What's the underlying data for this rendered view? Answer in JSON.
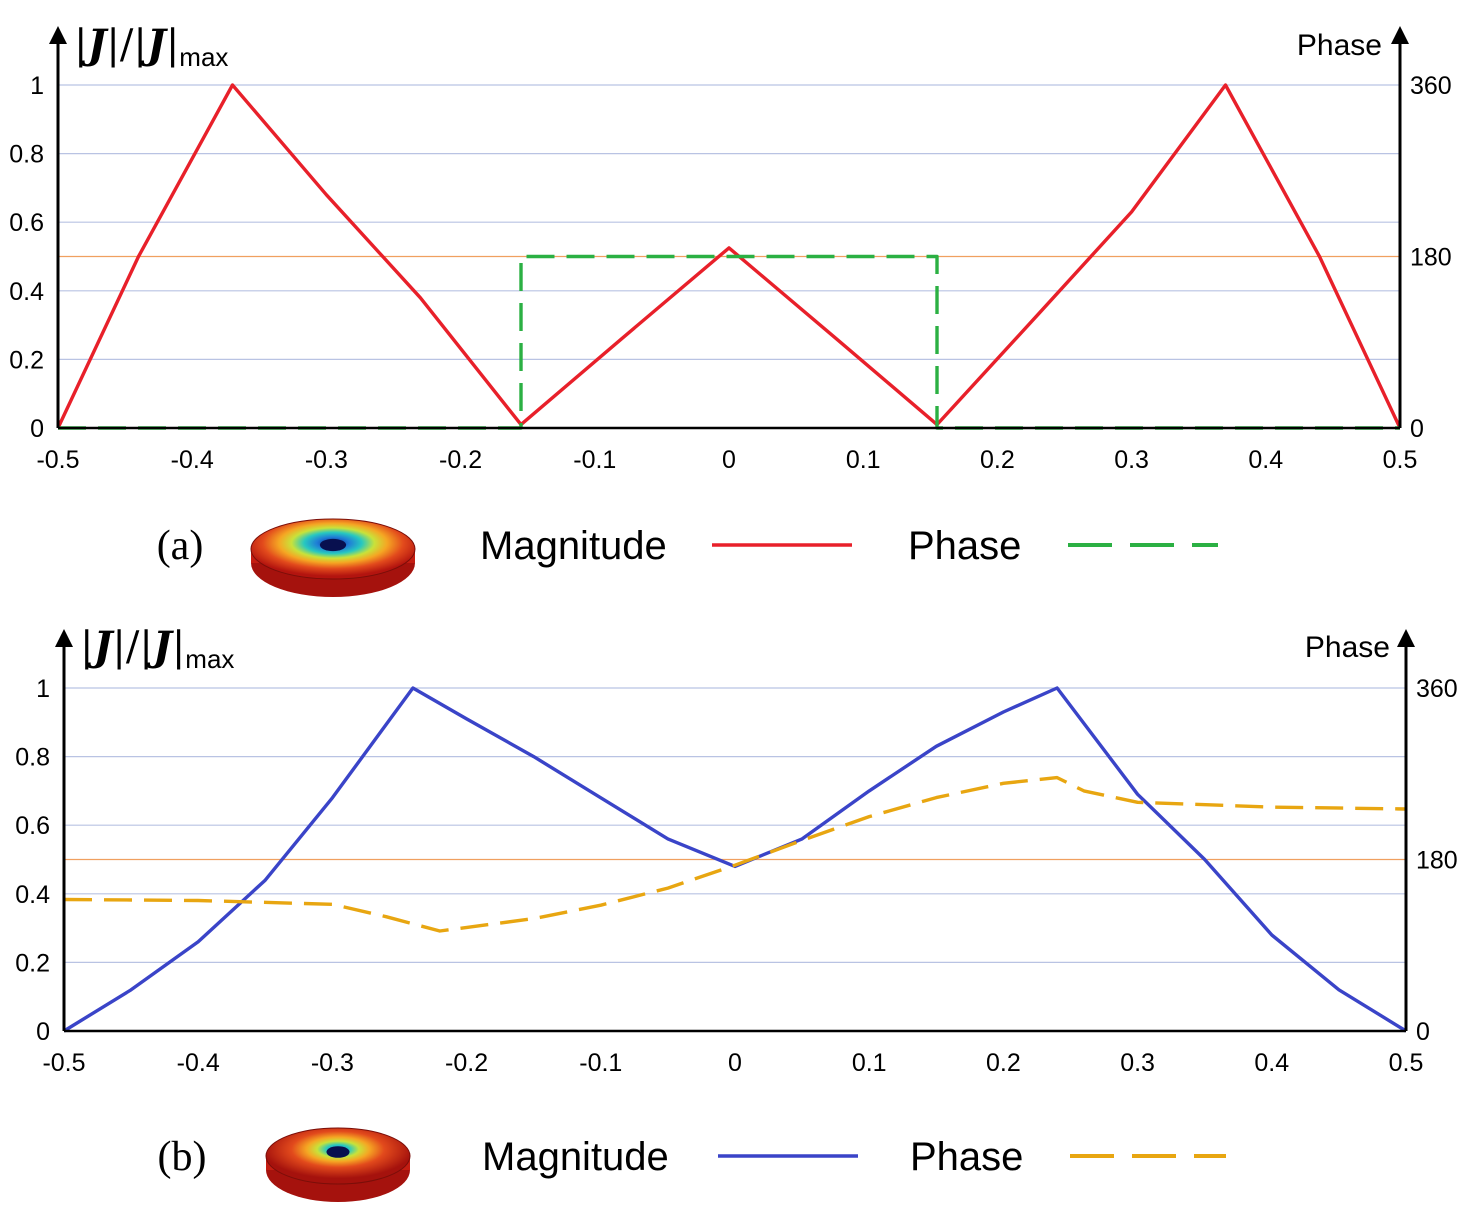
{
  "chart_data": [
    {
      "type": "line",
      "panel_label": "(a)",
      "ylabel": {
        "bars": "|",
        "slash": "/",
        "symbol": "J",
        "sub": "max"
      },
      "y2label": "Phase",
      "xlim": [
        -0.5,
        0.5
      ],
      "ylim": [
        0,
        1
      ],
      "y2lim": [
        0,
        360
      ],
      "xticks": [
        "-0.5",
        "-0.4",
        "-0.3",
        "-0.2",
        "-0.1",
        "0",
        "0.1",
        "0.2",
        "0.3",
        "0.4",
        "0.5"
      ],
      "yticks": [
        "0",
        "0.2",
        "0.4",
        "0.6",
        "0.8",
        "1"
      ],
      "y2ticks": [
        "0",
        "180",
        "360"
      ],
      "grid": true,
      "reference_line_y2": 180,
      "series": [
        {
          "name": "Magnitude",
          "axis": "left",
          "color": "#e8202a",
          "style": "solid",
          "x": [
            -0.5,
            -0.44,
            -0.37,
            -0.3,
            -0.23,
            -0.155,
            -0.08,
            0,
            0.08,
            0.155,
            0.23,
            0.3,
            0.37,
            0.44,
            0.5
          ],
          "y": [
            0,
            0.5,
            1,
            0.68,
            0.38,
            0.01,
            0.26,
            0.525,
            0.26,
            0.01,
            0.33,
            0.63,
            1,
            0.5,
            0
          ]
        },
        {
          "name": "Phase",
          "axis": "right",
          "color": "#2bb043",
          "style": "dashed",
          "x": [
            -0.5,
            -0.155,
            -0.155,
            0.155,
            0.155,
            0.5
          ],
          "y": [
            0,
            0,
            180,
            180,
            0,
            0
          ]
        }
      ],
      "legend_placement": "bottom-center"
    },
    {
      "type": "line",
      "panel_label": "(b)",
      "ylabel": {
        "bars": "|",
        "slash": "/",
        "symbol": "J",
        "sub": "max"
      },
      "y2label": "Phase",
      "xlim": [
        -0.5,
        0.5
      ],
      "ylim": [
        0,
        1
      ],
      "y2lim": [
        0,
        360
      ],
      "xticks": [
        "-0.5",
        "-0.4",
        "-0.3",
        "-0.2",
        "-0.1",
        "0",
        "0.1",
        "0.2",
        "0.3",
        "0.4",
        "0.5"
      ],
      "yticks": [
        "0",
        "0.2",
        "0.4",
        "0.6",
        "0.8",
        "1"
      ],
      "y2ticks": [
        "0",
        "180",
        "360"
      ],
      "grid": true,
      "reference_line_y2": 180,
      "series": [
        {
          "name": "Magnitude",
          "axis": "left",
          "color": "#3a44c8",
          "style": "solid",
          "x": [
            -0.5,
            -0.45,
            -0.4,
            -0.35,
            -0.3,
            -0.24,
            -0.2,
            -0.15,
            -0.1,
            -0.05,
            0,
            0.05,
            0.1,
            0.15,
            0.2,
            0.24,
            0.3,
            0.35,
            0.4,
            0.45,
            0.5
          ],
          "y": [
            0,
            0.12,
            0.26,
            0.44,
            0.68,
            1,
            0.91,
            0.8,
            0.68,
            0.56,
            0.48,
            0.56,
            0.7,
            0.83,
            0.93,
            1,
            0.69,
            0.5,
            0.28,
            0.12,
            0
          ]
        },
        {
          "name": "Phase",
          "axis": "right",
          "color": "#e8a611",
          "style": "dashed",
          "x": [
            -0.5,
            -0.4,
            -0.3,
            -0.26,
            -0.22,
            -0.15,
            -0.1,
            -0.05,
            0,
            0.05,
            0.1,
            0.15,
            0.2,
            0.24,
            0.26,
            0.3,
            0.4,
            0.5
          ],
          "y": [
            138,
            137,
            133,
            120,
            105,
            118,
            132,
            150,
            174,
            200,
            225,
            245,
            260,
            266,
            252,
            240,
            235,
            233
          ]
        }
      ],
      "legend_placement": "bottom-center"
    }
  ]
}
